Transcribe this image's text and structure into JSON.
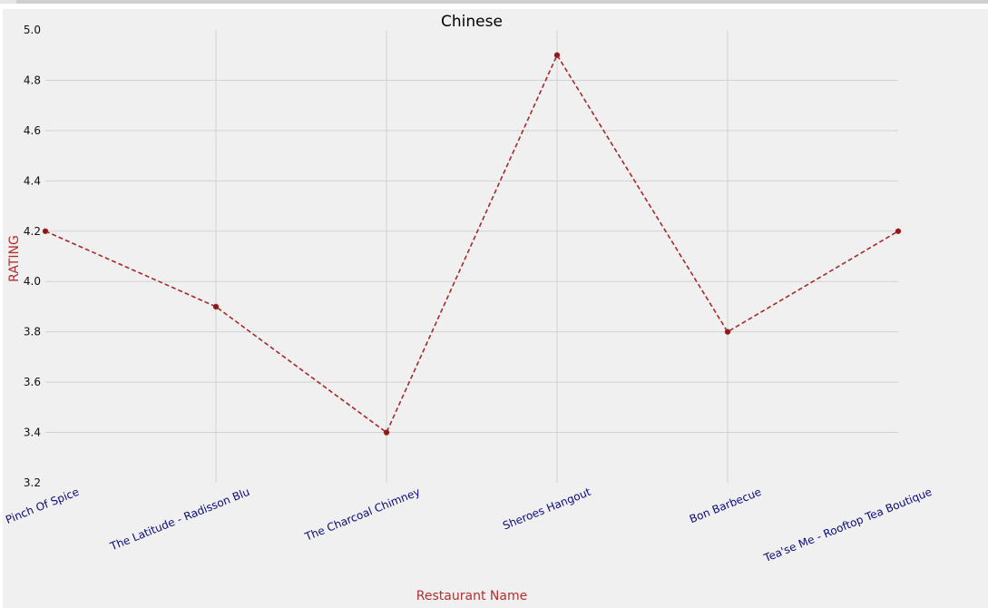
{
  "chart_data": {
    "type": "line",
    "title": "Chinese",
    "xlabel": "Restaurant Name",
    "ylabel": "RATING",
    "categories": [
      "Pinch Of Spice",
      "The Latitude - Radisson Blu",
      "The Charcoal Chimney",
      "Sheroes Hangout",
      "Bon Barbecue",
      "Tea'se Me - Rooftop Tea Boutique"
    ],
    "values": [
      4.2,
      3.9,
      3.4,
      4.9,
      3.8,
      4.2
    ],
    "ylim": [
      3.2,
      5.0
    ],
    "yticks": [
      "3.2",
      "3.4",
      "3.6",
      "3.8",
      "4.0",
      "4.2",
      "4.4",
      "4.6",
      "4.8",
      "5.0"
    ],
    "grid": true,
    "line_style": "dashed",
    "colors": {
      "line": "#a52a2a",
      "marker": "#8b1a1a",
      "axis_title": "#b03030",
      "category_label": "#0a0a7a",
      "background": "#f0f0f0",
      "grid": "#d2d2d2"
    }
  }
}
